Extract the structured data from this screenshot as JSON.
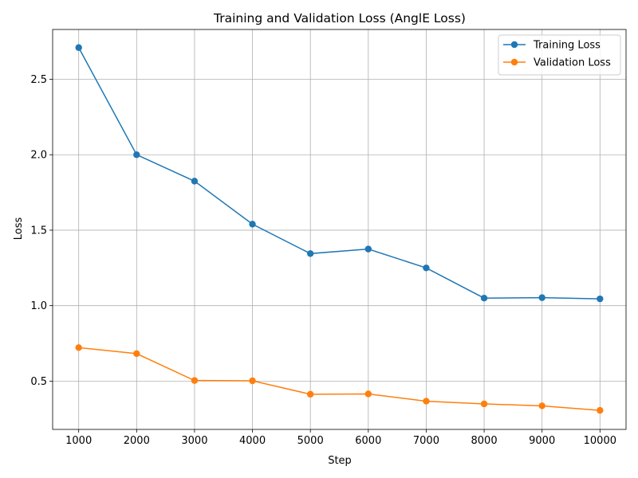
{
  "chart_data": {
    "type": "line",
    "title": "Training and Validation Loss (AnglE Loss)",
    "xlabel": "Step",
    "ylabel": "Loss",
    "x": [
      1000,
      2000,
      3000,
      4000,
      5000,
      6000,
      7000,
      8000,
      9000,
      10000
    ],
    "xticks": [
      1000,
      2000,
      3000,
      4000,
      5000,
      6000,
      7000,
      8000,
      9000,
      10000
    ],
    "yticks": [
      0.5,
      1.0,
      1.5,
      2.0,
      2.5
    ],
    "xlim": [
      550,
      10450
    ],
    "ylim": [
      0.18,
      2.83
    ],
    "grid": true,
    "legend_position": "top-right",
    "series": [
      {
        "name": "Training Loss",
        "color": "#1f77b4",
        "marker": "circle",
        "values": [
          2.71,
          2.0,
          1.825,
          1.54,
          1.345,
          1.375,
          1.25,
          1.05,
          1.053,
          1.045
        ]
      },
      {
        "name": "Validation Loss",
        "color": "#ff7f0e",
        "marker": "circle",
        "values": [
          0.722,
          0.682,
          0.504,
          0.502,
          0.413,
          0.415,
          0.367,
          0.349,
          0.336,
          0.306
        ]
      }
    ]
  }
}
